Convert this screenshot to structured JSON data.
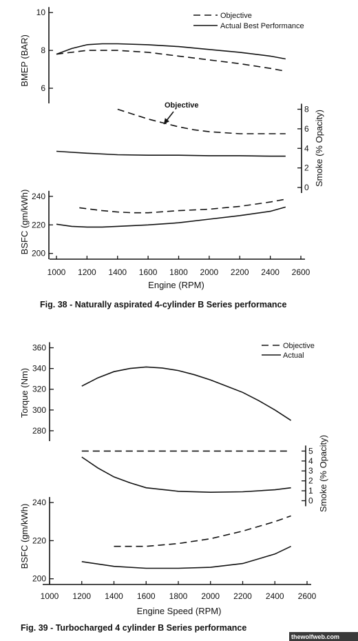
{
  "watermark": "thewolfweb.com",
  "chart_data": [
    {
      "type": "line",
      "caption": "Fig. 38 - Naturally aspirated 4-cylinder B Series performance",
      "xlabel": "Engine (RPM)",
      "xticks": [
        1000,
        1200,
        1400,
        1600,
        1800,
        2000,
        2200,
        2400,
        2600
      ],
      "xlim": [
        1000,
        2600
      ],
      "legend": {
        "objective": "Objective",
        "actual": "Actual Best Performance"
      },
      "annotation": "Objective",
      "panels": [
        {
          "id": "bmep",
          "ylabel": "BMEP (BAR)",
          "axis_side": "left",
          "yticks": [
            6,
            8,
            10
          ],
          "ylim": [
            5.2,
            10.3
          ],
          "series": [
            {
              "name": "Objective",
              "style": "dashed",
              "x": [
                1000,
                1200,
                1400,
                1600,
                1800,
                2000,
                2200,
                2400,
                2500
              ],
              "y": [
                7.8,
                8.0,
                8.0,
                7.9,
                7.7,
                7.5,
                7.3,
                7.05,
                6.9
              ]
            },
            {
              "name": "Actual Best Performance",
              "style": "solid",
              "x": [
                1000,
                1100,
                1200,
                1300,
                1400,
                1600,
                1800,
                2000,
                2200,
                2400,
                2500
              ],
              "y": [
                7.8,
                8.1,
                8.3,
                8.35,
                8.35,
                8.3,
                8.2,
                8.05,
                7.9,
                7.7,
                7.55
              ]
            }
          ]
        },
        {
          "id": "smoke",
          "ylabel": "Smoke (% Opacity)",
          "axis_side": "right",
          "yticks": [
            0,
            2,
            4,
            6,
            8
          ],
          "ylim": [
            0,
            8.6
          ],
          "series": [
            {
              "name": "Objective",
              "style": "dashed",
              "x": [
                1400,
                1500,
                1600,
                1700,
                1800,
                1900,
                2000,
                2100,
                2200,
                2300,
                2400,
                2500
              ],
              "y": [
                8.0,
                7.5,
                7.0,
                6.6,
                6.2,
                5.9,
                5.7,
                5.6,
                5.5,
                5.5,
                5.5,
                5.5
              ]
            },
            {
              "name": "Actual",
              "style": "solid",
              "x": [
                1000,
                1200,
                1400,
                1600,
                1800,
                2000,
                2200,
                2400,
                2500
              ],
              "y": [
                3.7,
                3.5,
                3.35,
                3.3,
                3.3,
                3.25,
                3.25,
                3.2,
                3.2
              ]
            }
          ]
        },
        {
          "id": "bsfc",
          "ylabel": "BSFC (gm/kWh)",
          "axis_side": "left",
          "yticks": [
            200,
            220,
            240
          ],
          "ylim": [
            196,
            252
          ],
          "series": [
            {
              "name": "Objective",
              "style": "dashed",
              "x": [
                1150,
                1300,
                1400,
                1500,
                1600,
                1800,
                2000,
                2200,
                2400,
                2500
              ],
              "y": [
                232,
                230,
                229,
                228.5,
                228.5,
                230,
                231,
                233,
                236,
                238
              ]
            },
            {
              "name": "Actual",
              "style": "solid",
              "x": [
                1000,
                1100,
                1200,
                1300,
                1400,
                1600,
                1800,
                2000,
                2200,
                2400,
                2500
              ],
              "y": [
                220.5,
                219,
                218.5,
                218.5,
                219,
                220,
                221.5,
                224,
                226.5,
                229.5,
                232.5
              ]
            }
          ]
        }
      ]
    },
    {
      "type": "line",
      "caption": "Fig. 39 - Turbocharged 4 cylinder B Series performance",
      "xlabel": "Engine Speed (RPM)",
      "xticks": [
        1000,
        1200,
        1400,
        1600,
        1800,
        2000,
        2200,
        2400,
        2600
      ],
      "xlim": [
        1000,
        2600
      ],
      "legend": {
        "objective": "Objective",
        "actual": "Actual"
      },
      "panels": [
        {
          "id": "torque",
          "ylabel": "Torque (Nm)",
          "axis_side": "left",
          "yticks": [
            280,
            300,
            320,
            340,
            360
          ],
          "ylim": [
            270,
            367
          ],
          "series": [
            {
              "name": "Actual",
              "style": "solid",
              "x": [
                1200,
                1300,
                1400,
                1500,
                1600,
                1700,
                1800,
                1900,
                2000,
                2100,
                2200,
                2300,
                2400,
                2500
              ],
              "y": [
                323,
                331,
                337,
                340,
                341.5,
                340.5,
                338,
                334,
                329,
                323,
                317,
                309,
                300,
                290
              ]
            }
          ]
        },
        {
          "id": "smoke",
          "ylabel": "Smoke (% Opacity)",
          "axis_side": "right",
          "yticks": [
            0,
            1,
            2,
            3,
            4,
            5
          ],
          "ylim": [
            -0.8,
            6
          ],
          "series": [
            {
              "name": "Objective",
              "style": "dashed",
              "x": [
                1200,
                2500
              ],
              "y": [
                5,
                5
              ]
            },
            {
              "name": "Actual",
              "style": "solid",
              "x": [
                1200,
                1300,
                1400,
                1500,
                1600,
                1800,
                2000,
                2200,
                2400,
                2500
              ],
              "y": [
                4.4,
                3.3,
                2.4,
                1.8,
                1.3,
                0.95,
                0.85,
                0.9,
                1.1,
                1.3
              ]
            }
          ]
        },
        {
          "id": "bsfc",
          "ylabel": "BSFC (gm/kWh)",
          "axis_side": "left",
          "yticks": [
            200,
            220,
            240
          ],
          "ylim": [
            197,
            248
          ],
          "series": [
            {
              "name": "Objective",
              "style": "dashed",
              "x": [
                1400,
                1600,
                1800,
                2000,
                2200,
                2400,
                2500
              ],
              "y": [
                217,
                217,
                218.5,
                221,
                225,
                230,
                233
              ]
            },
            {
              "name": "Actual",
              "style": "solid",
              "x": [
                1200,
                1400,
                1600,
                1800,
                2000,
                2200,
                2400,
                2500
              ],
              "y": [
                209,
                206.5,
                205.5,
                205.5,
                206,
                208,
                213,
                217
              ]
            }
          ]
        }
      ]
    }
  ]
}
